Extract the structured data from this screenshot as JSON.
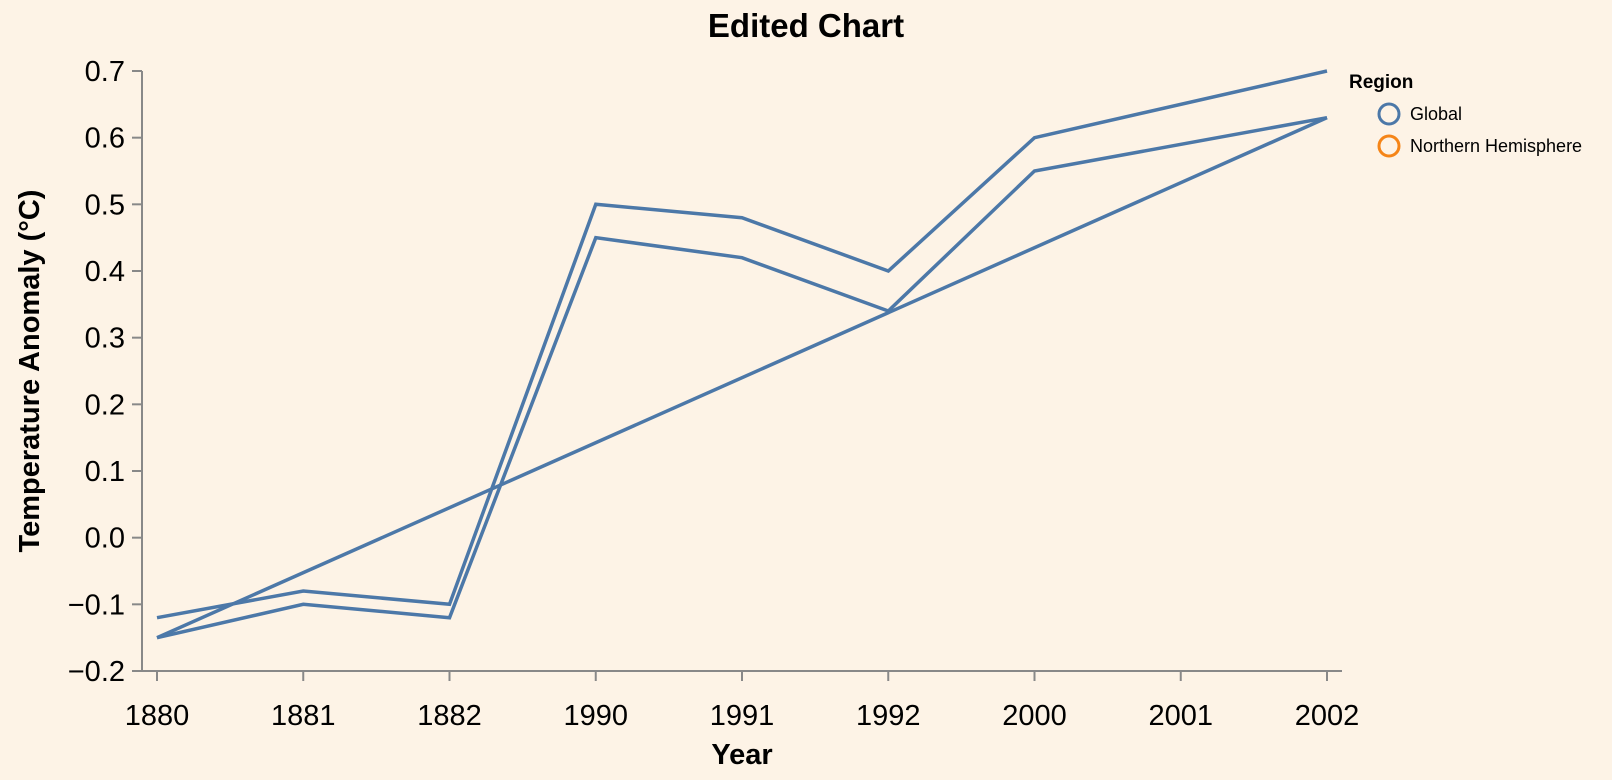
{
  "chart_data": {
    "type": "line",
    "title": "Edited Chart",
    "xlabel": "Year",
    "ylabel": "Temperature Anomaly (°C)",
    "x_scale": "ordinal",
    "categories": [
      "1880",
      "1881",
      "1882",
      "1990",
      "1991",
      "1992",
      "2000",
      "2001",
      "2002"
    ],
    "ylim": [
      -0.2,
      0.7
    ],
    "yticks": [
      "−0.2",
      "−0.1",
      "0.0",
      "0.1",
      "0.2",
      "0.3",
      "0.4",
      "0.5",
      "0.6",
      "0.7"
    ],
    "ytick_values": [
      -0.2,
      -0.1,
      0.0,
      0.1,
      0.2,
      0.3,
      0.4,
      0.5,
      0.6,
      0.7
    ],
    "grid": false,
    "line_color": "#4c78a8",
    "series": [
      {
        "x": [
          "1880",
          "1881",
          "1882",
          "1990",
          "1991",
          "1992",
          "2000",
          "2002"
        ],
        "values": [
          -0.12,
          -0.08,
          -0.1,
          0.5,
          0.48,
          0.4,
          0.6,
          0.7
        ]
      },
      {
        "x": [
          "1880",
          "1881",
          "1882",
          "1990",
          "1991",
          "1992",
          "2000",
          "2002"
        ],
        "values": [
          -0.15,
          -0.1,
          -0.12,
          0.45,
          0.42,
          0.34,
          0.55,
          0.63
        ]
      },
      {
        "x": [
          "1880",
          "2002"
        ],
        "values": [
          -0.15,
          0.63
        ]
      }
    ],
    "legend": {
      "title": "Region",
      "placement": "top-right",
      "items": [
        {
          "label": "Global",
          "color": "#4c78a8"
        },
        {
          "label": "Northern Hemisphere",
          "color": "#f58518"
        }
      ]
    }
  }
}
